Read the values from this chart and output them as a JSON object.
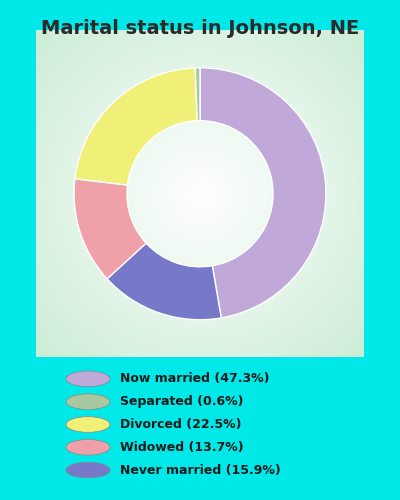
{
  "title": "Marital status in Johnson, NE",
  "slices": [
    47.3,
    15.9,
    13.7,
    22.5,
    0.6
  ],
  "labels": [
    "Now married (47.3%)",
    "Separated (0.6%)",
    "Divorced (22.5%)",
    "Widowed (13.7%)",
    "Never married (15.9%)"
  ],
  "colors": [
    "#c0a8d8",
    "#7878c8",
    "#f0a0a8",
    "#f0f078",
    "#a8c8a0"
  ],
  "legend_colors": [
    "#c0a8d8",
    "#a8c8a0",
    "#f0f078",
    "#f0a0a8",
    "#7878c8"
  ],
  "background_outer": "#00e8e8",
  "background_chart_edge": "#c8e8d0",
  "title_fontsize": 14,
  "donut_width": 0.42,
  "start_angle": 90
}
